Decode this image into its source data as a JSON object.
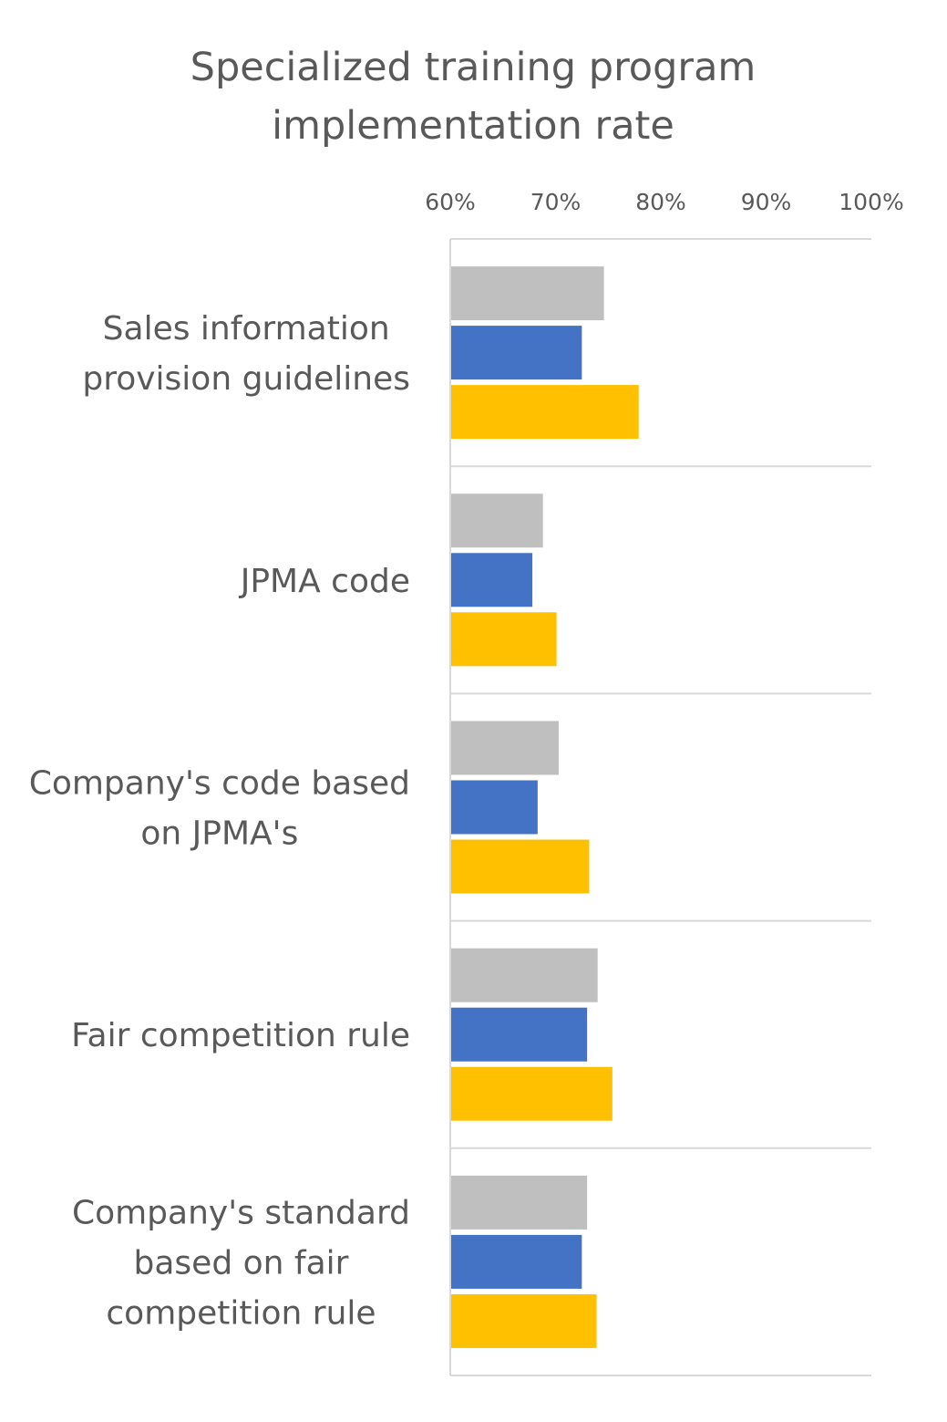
{
  "chart_data": {
    "type": "bar",
    "orientation": "horizontal",
    "title_lines": [
      "Specialized training program",
      "implementation rate"
    ],
    "xlabel": "",
    "ylabel": "",
    "xlim": [
      60,
      100
    ],
    "tick_values": [
      60,
      70,
      80,
      90,
      100
    ],
    "tick_labels": [
      "60%",
      "70%",
      "80%",
      "90%",
      "100%"
    ],
    "tick_position": "top",
    "grid": false,
    "legend": null,
    "categories": [
      {
        "key": "sales-information-provision-guidelines",
        "label_lines": [
          "Sales information",
          "provision guidelines"
        ]
      },
      {
        "key": "jpma-code",
        "label_lines": [
          "JPMA code"
        ]
      },
      {
        "key": "company-code-based-on-jpma",
        "label_lines": [
          "Company's code based",
          "on JPMA's"
        ]
      },
      {
        "key": "fair-competition-rule",
        "label_lines": [
          "Fair competition rule"
        ]
      },
      {
        "key": "company-standard-based-on-fair-competition-rule",
        "label_lines": [
          "Company's standard",
          "based on fair",
          "competition rule"
        ]
      }
    ],
    "series": [
      {
        "key": "series-gray",
        "color": "#bfbfbf",
        "values": [
          74.6,
          68.8,
          70.3,
          74.0,
          73.0
        ]
      },
      {
        "key": "series-blue",
        "color": "#4472c4",
        "values": [
          72.5,
          67.8,
          68.3,
          73.0,
          72.5
        ]
      },
      {
        "key": "series-yellow",
        "color": "#ffc000",
        "values": [
          77.9,
          70.1,
          73.2,
          75.4,
          73.9
        ]
      }
    ]
  }
}
